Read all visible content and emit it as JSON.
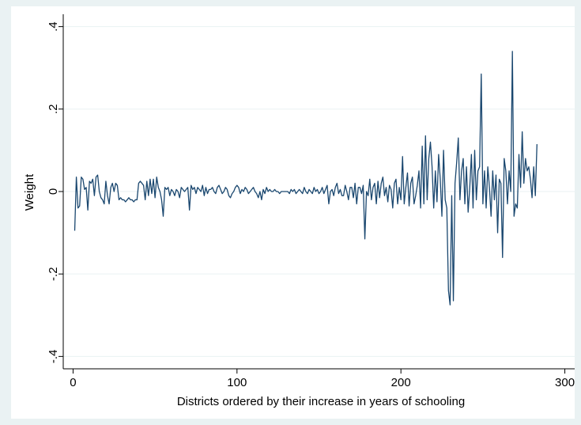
{
  "chart_data": {
    "type": "line",
    "xlabel": "Districts ordered by their increase in years of schooling",
    "ylabel": "Weight",
    "xlim": [
      -6,
      306
    ],
    "ylim": [
      -0.43,
      0.43
    ],
    "xticks": [
      0,
      100,
      200,
      300
    ],
    "yticks": [
      {
        "value": -0.4,
        "label": "-.4"
      },
      {
        "value": -0.2,
        "label": "-.2"
      },
      0,
      {
        "value": 0.2,
        "label": ".2"
      },
      {
        "value": 0.4,
        "label": ".4"
      }
    ],
    "grid": true,
    "series": [
      {
        "color": "#1a476f",
        "x": [
          1,
          2,
          3,
          4,
          5,
          6,
          7,
          8,
          9,
          10,
          11,
          12,
          13,
          14,
          15,
          16,
          17,
          18,
          19,
          20,
          21,
          22,
          23,
          24,
          25,
          26,
          27,
          28,
          29,
          30,
          31,
          32,
          33,
          34,
          35,
          36,
          37,
          38,
          39,
          40,
          41,
          42,
          43,
          44,
          45,
          46,
          47,
          48,
          49,
          50,
          51,
          52,
          53,
          54,
          55,
          56,
          57,
          58,
          59,
          60,
          61,
          62,
          63,
          64,
          65,
          66,
          67,
          68,
          69,
          70,
          71,
          72,
          73,
          74,
          75,
          76,
          77,
          78,
          79,
          80,
          81,
          82,
          83,
          84,
          85,
          86,
          87,
          88,
          89,
          90,
          91,
          92,
          93,
          94,
          95,
          96,
          97,
          98,
          99,
          100,
          101,
          102,
          103,
          104,
          105,
          106,
          107,
          108,
          109,
          110,
          111,
          112,
          113,
          114,
          115,
          116,
          117,
          118,
          119,
          120,
          121,
          122,
          123,
          124,
          125,
          126,
          127,
          128,
          129,
          130,
          131,
          132,
          133,
          134,
          135,
          136,
          137,
          138,
          139,
          140,
          141,
          142,
          143,
          144,
          145,
          146,
          147,
          148,
          149,
          150,
          151,
          152,
          153,
          154,
          155,
          156,
          157,
          158,
          159,
          160,
          161,
          162,
          163,
          164,
          165,
          166,
          167,
          168,
          169,
          170,
          171,
          172,
          173,
          174,
          175,
          176,
          177,
          178,
          179,
          180,
          181,
          182,
          183,
          184,
          185,
          186,
          187,
          188,
          189,
          190,
          191,
          192,
          193,
          194,
          195,
          196,
          197,
          198,
          199,
          200,
          201,
          202,
          203,
          204,
          205,
          206,
          207,
          208,
          209,
          210,
          211,
          212,
          213,
          214,
          215,
          216,
          217,
          218,
          219,
          220,
          221,
          222,
          223,
          224,
          225,
          226,
          227,
          228,
          229,
          230,
          231,
          232,
          233,
          234,
          235,
          236,
          237,
          238,
          239,
          240,
          241,
          242,
          243,
          244,
          245,
          246,
          247,
          248,
          249,
          250,
          251,
          252,
          253,
          254,
          255,
          256,
          257,
          258,
          259,
          260,
          261,
          262,
          263,
          264,
          265,
          266,
          267,
          268,
          269,
          270,
          271,
          272,
          273,
          274,
          275,
          276,
          277,
          278,
          279,
          280,
          281,
          282,
          283
        ],
        "values": [
          -0.095,
          0.035,
          -0.04,
          -0.035,
          0.035,
          0.03,
          0.005,
          0.01,
          -0.045,
          0.025,
          0.02,
          0.03,
          -0.01,
          0.035,
          0.04,
          0.0,
          -0.015,
          -0.02,
          -0.03,
          0.025,
          -0.01,
          -0.03,
          0.01,
          0.02,
          0.0,
          0.02,
          0.015,
          -0.02,
          -0.015,
          -0.02,
          -0.02,
          -0.025,
          -0.02,
          -0.015,
          -0.02,
          -0.02,
          -0.025,
          -0.02,
          -0.02,
          0.02,
          0.025,
          0.02,
          0.015,
          -0.02,
          0.025,
          -0.01,
          0.03,
          -0.005,
          0.03,
          -0.015,
          0.035,
          0.01,
          0.0,
          -0.02,
          -0.06,
          0.01,
          0.005,
          0.01,
          -0.01,
          0.005,
          0.0,
          -0.01,
          0.005,
          0.0,
          -0.015,
          0.01,
          0.005,
          0.0,
          0.005,
          0.01,
          -0.045,
          0.015,
          0.005,
          0.01,
          -0.005,
          0.01,
          0.005,
          0.0,
          0.015,
          -0.01,
          0.01,
          -0.005,
          0.005,
          0.005,
          0.01,
          0.0,
          -0.005,
          0.01,
          0.015,
          0.005,
          -0.005,
          0.0,
          0.01,
          0.005,
          -0.01,
          -0.015,
          -0.005,
          0.0,
          0.01,
          0.015,
          0.01,
          -0.005,
          0.005,
          0.0,
          0.01,
          0.005,
          -0.005,
          0.0,
          0.005,
          0.01,
          0.0,
          -0.005,
          -0.015,
          0.0,
          -0.02,
          0.005,
          -0.005,
          0.01,
          0.0,
          0.005,
          0.0,
          0.0,
          0.005,
          0.0,
          0.0,
          -0.005,
          0.0,
          0.0,
          0.0,
          0.0,
          0.0,
          -0.005,
          0.005,
          0.0,
          0.005,
          -0.005,
          0.0,
          0.005,
          0.0,
          -0.005,
          0.01,
          0.0,
          -0.005,
          0.005,
          0.0,
          -0.005,
          0.01,
          0.0,
          0.005,
          -0.005,
          0.0,
          0.01,
          -0.005,
          0.005,
          0.015,
          -0.03,
          0.0,
          0.005,
          -0.01,
          0.01,
          0.02,
          -0.005,
          0.005,
          -0.01,
          -0.01,
          0.015,
          0.0,
          -0.02,
          0.01,
          0.01,
          -0.015,
          0.02,
          -0.03,
          0.01,
          0.01,
          -0.005,
          0.015,
          -0.115,
          0.0,
          -0.01,
          0.03,
          -0.02,
          0.01,
          0.02,
          -0.03,
          0.025,
          -0.015,
          0.02,
          0.035,
          -0.01,
          0.01,
          -0.025,
          0.015,
          0.005,
          -0.04,
          0.02,
          0.03,
          -0.03,
          0.01,
          -0.02,
          0.085,
          -0.03,
          0.01,
          0.045,
          -0.035,
          0.02,
          0.035,
          -0.03,
          -0.01,
          0.015,
          0.05,
          -0.04,
          0.11,
          -0.03,
          0.135,
          -0.02,
          0.08,
          0.12,
          0.06,
          -0.04,
          0.05,
          -0.025,
          0.09,
          0.03,
          -0.06,
          0.1,
          -0.02,
          -0.04,
          -0.24,
          -0.275,
          -0.01,
          -0.265,
          0.02,
          0.07,
          0.13,
          -0.02,
          0.05,
          0.08,
          -0.03,
          0.06,
          -0.05,
          0.01,
          0.09,
          -0.04,
          0.1,
          -0.02,
          0.05,
          0.06,
          0.285,
          -0.03,
          0.05,
          -0.04,
          0.06,
          0.01,
          -0.06,
          0.05,
          -0.02,
          0.04,
          -0.1,
          0.03,
          0.02,
          -0.16,
          0.08,
          0.05,
          -0.03,
          0.05,
          0.0,
          0.34,
          -0.06,
          -0.03,
          -0.04,
          0.09,
          0.01,
          0.145,
          0.02,
          0.08,
          0.05,
          0.06,
          0.03,
          -0.015,
          0.06,
          -0.01,
          0.115
        ]
      }
    ]
  }
}
